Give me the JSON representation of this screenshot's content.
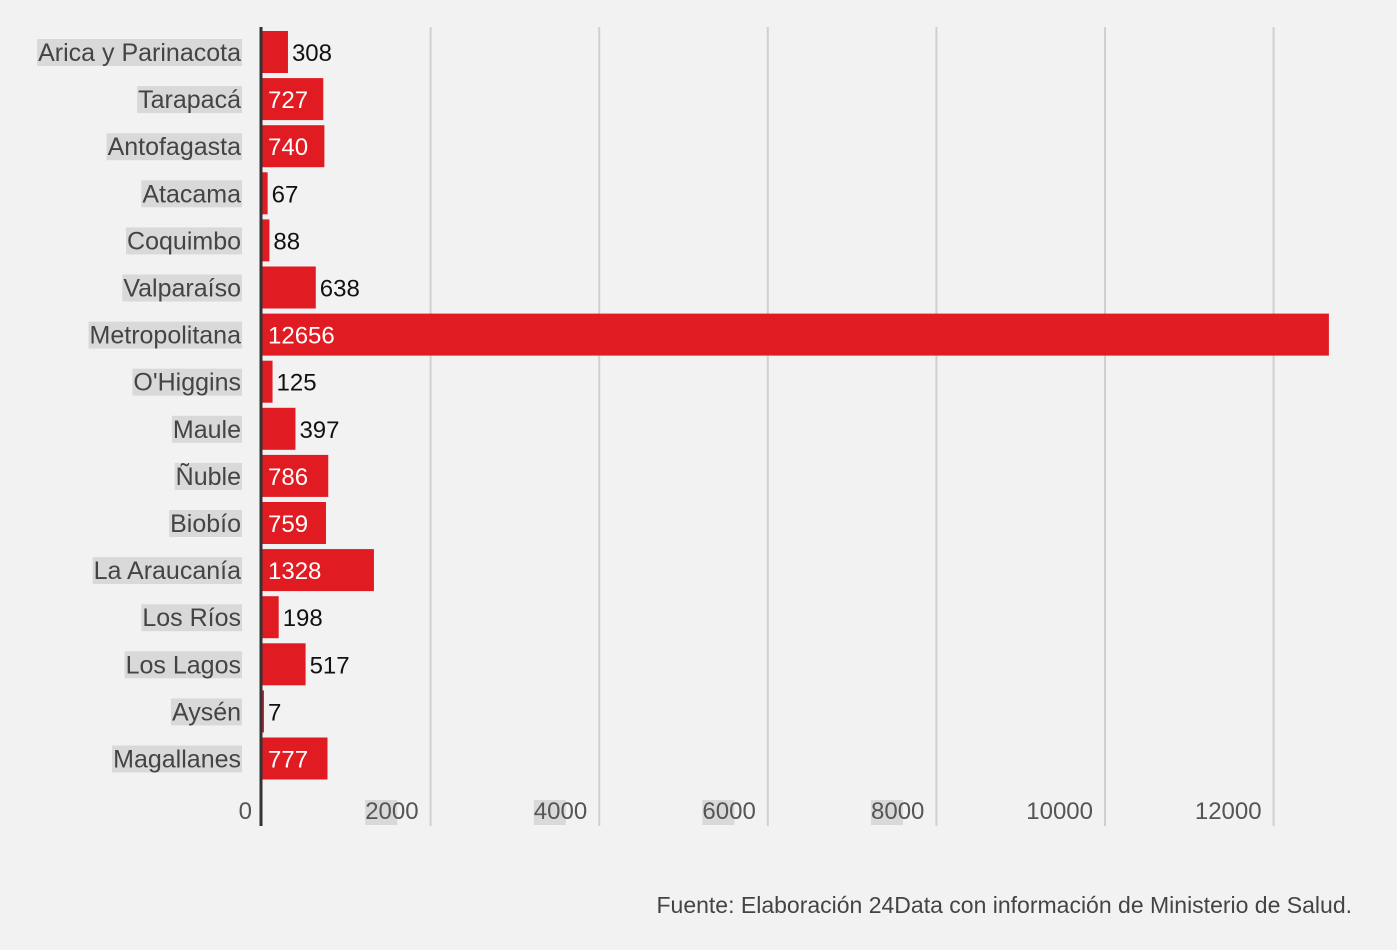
{
  "chart_data": {
    "type": "bar",
    "orientation": "horizontal",
    "categories": [
      "Arica y Parinacota",
      "Tarapacá",
      "Antofagasta",
      "Atacama",
      "Coquimbo",
      "Valparaíso",
      "Metropolitana",
      "O'Higgins",
      "Maule",
      "Ñuble",
      "Biobío",
      "La Araucanía",
      "Los Ríos",
      "Los Lagos",
      "Aysén",
      "Magallanes"
    ],
    "values": [
      308,
      727,
      740,
      67,
      88,
      638,
      12656,
      125,
      397,
      786,
      759,
      1328,
      198,
      517,
      7,
      777
    ],
    "xticks": [
      0,
      2000,
      4000,
      6000,
      8000,
      10000,
      12000
    ],
    "xlim": [
      0,
      12700
    ],
    "grid": true,
    "bar_color": "#e11b22",
    "grid_color": "#d0d0d0",
    "label_highlight_color": "#d9d9d9"
  },
  "source_note": "Fuente: Elaboración 24Data con información de Ministerio de Salud."
}
